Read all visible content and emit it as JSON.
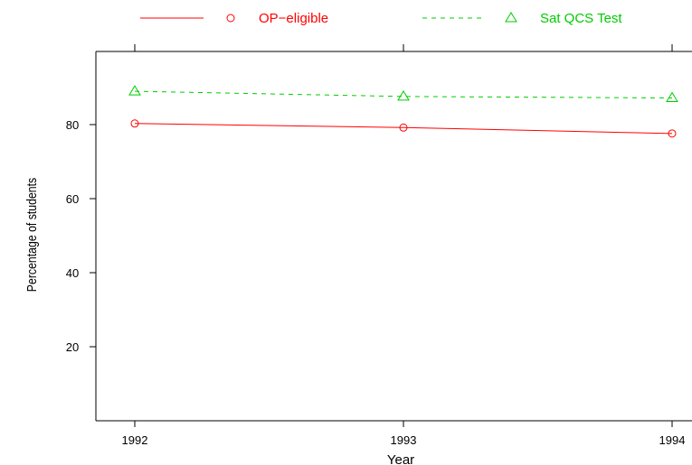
{
  "chart_data": {
    "type": "line",
    "title": "",
    "xlabel": "Year",
    "ylabel": "Percentage of students",
    "x": [
      1992,
      1993,
      1994
    ],
    "x_tick_labels": [
      "1992",
      "1993",
      "1994"
    ],
    "y_tick_labels": [
      "20",
      "40",
      "60",
      "80"
    ],
    "y_ticks": [
      20,
      40,
      60,
      80
    ],
    "xlim": [
      1992,
      1994
    ],
    "ylim": [
      0,
      100
    ],
    "grid": false,
    "legend_position": "top",
    "series": [
      {
        "name": "OP−eligible",
        "values": [
          80.3,
          79.2,
          77.6
        ],
        "color": "#ff0000",
        "line_style": "solid",
        "marker": "circle"
      },
      {
        "name": "Sat QCS Test",
        "values": [
          89.0,
          87.6,
          87.2
        ],
        "color": "#00cc00",
        "line_style": "dashed",
        "marker": "triangle"
      }
    ]
  }
}
